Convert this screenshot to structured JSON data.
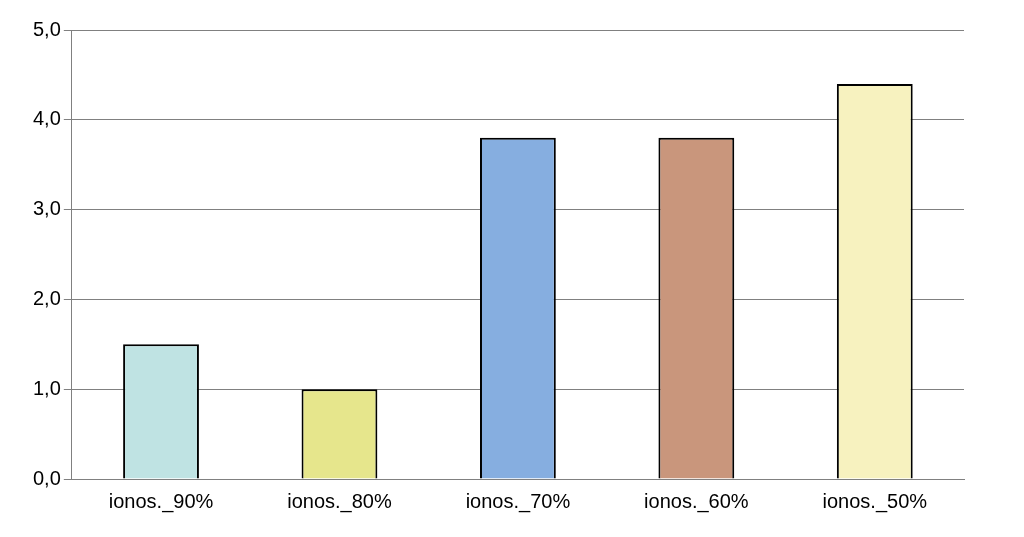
{
  "chart_data": {
    "type": "bar",
    "categories": [
      "ionos._90%",
      "ionos._80%",
      "ionos._70%",
      "ionos._60%",
      "ionos._50%"
    ],
    "values": [
      1.5,
      1.0,
      3.8,
      3.8,
      4.4
    ],
    "colors": [
      "#bfe3e3",
      "#e6e68c",
      "#86aee0",
      "#c9967c",
      "#f7f2bf"
    ],
    "ylim": [
      0,
      5
    ],
    "yticks": [
      {
        "value": 0,
        "label": "0,0"
      },
      {
        "value": 1,
        "label": "1,0"
      },
      {
        "value": 2,
        "label": "2,0"
      },
      {
        "value": 3,
        "label": "3,0"
      },
      {
        "value": 4,
        "label": "4,0"
      },
      {
        "value": 5,
        "label": "5,0"
      }
    ],
    "grid": true
  }
}
